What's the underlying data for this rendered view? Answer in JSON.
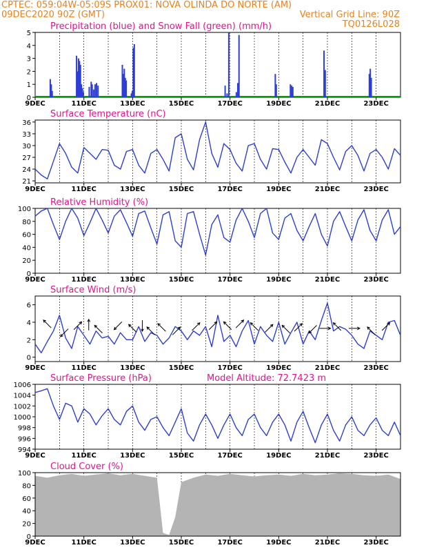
{
  "header": {
    "line1_left": "CPTEC:   059:04W-05:09S   PROX01: NOVA OLINDA DO NORTE (AM)",
    "line2_left": "09DEC2020 90Z (GMT)",
    "line2_right": "Vertical Grid Line: 90Z",
    "line3_right": "TQ0126L028"
  },
  "colors": {
    "title": "#e0148c",
    "header": "#e8821e",
    "line": "#2d3ed6",
    "snow": "#00a000",
    "cloud": "#b4b4b4"
  },
  "chart_data": [
    {
      "id": "precip",
      "type": "bar",
      "title": "Precipitation (blue) and Snow Fall (green) (mm/h)",
      "ylim": [
        0,
        5
      ],
      "yticks": [
        0,
        1,
        2,
        3,
        4,
        5
      ],
      "x_range_days": [
        0,
        15
      ],
      "x_tick_labels": [
        "9DEC",
        "11DEC",
        "13DEC",
        "15DEC",
        "17DEC",
        "19DEC",
        "21DEC",
        "23DEC"
      ],
      "snow_values": [
        0
      ],
      "rain_events": [
        [
          0.62,
          1.4
        ],
        [
          0.66,
          1.0
        ],
        [
          0.7,
          0.5
        ],
        [
          1.7,
          3.2
        ],
        [
          1.74,
          2.0
        ],
        [
          1.78,
          3.0
        ],
        [
          1.82,
          2.8
        ],
        [
          1.86,
          2.5
        ],
        [
          1.9,
          1.0
        ],
        [
          1.94,
          0.7
        ],
        [
          1.98,
          0.4
        ],
        [
          2.22,
          0.8
        ],
        [
          2.3,
          1.2
        ],
        [
          2.34,
          1.0
        ],
        [
          2.4,
          0.6
        ],
        [
          2.46,
          1.0
        ],
        [
          2.52,
          1.1
        ],
        [
          2.58,
          0.9
        ],
        [
          3.58,
          2.5
        ],
        [
          3.62,
          1.8
        ],
        [
          3.66,
          2.2
        ],
        [
          3.7,
          1.5
        ],
        [
          3.74,
          1.3
        ],
        [
          3.95,
          0.3
        ],
        [
          3.99,
          0.5
        ],
        [
          4.03,
          3.8
        ],
        [
          4.07,
          4.1
        ],
        [
          7.8,
          0.9
        ],
        [
          7.88,
          0.3
        ],
        [
          7.95,
          5.0
        ],
        [
          8.26,
          0.4
        ],
        [
          8.32,
          1.1
        ],
        [
          8.37,
          4.8
        ],
        [
          9.86,
          1.8
        ],
        [
          9.9,
          1.0
        ],
        [
          10.48,
          1.0
        ],
        [
          10.53,
          0.9
        ],
        [
          10.58,
          0.8
        ],
        [
          11.86,
          3.6
        ],
        [
          11.91,
          2.1
        ],
        [
          13.72,
          1.8
        ],
        [
          13.76,
          2.2
        ],
        [
          13.8,
          1.5
        ]
      ]
    },
    {
      "id": "temp",
      "type": "line",
      "title": "Surface Temperature (nC)",
      "ylim": [
        20.5,
        36.5
      ],
      "yticks": [
        21,
        24,
        27,
        30,
        33,
        36
      ],
      "x_tick_labels": [
        "9DEC",
        "11DEC",
        "13DEC",
        "15DEC",
        "17DEC",
        "19DEC",
        "21DEC",
        "23DEC"
      ],
      "x": [
        0,
        0.25,
        0.5,
        0.75,
        1,
        1.25,
        1.5,
        1.75,
        2,
        2.25,
        2.5,
        2.75,
        3,
        3.25,
        3.5,
        3.75,
        4,
        4.25,
        4.5,
        4.75,
        5,
        5.25,
        5.5,
        5.75,
        6,
        6.25,
        6.5,
        6.75,
        7,
        7.25,
        7.5,
        7.75,
        8,
        8.25,
        8.5,
        8.75,
        9,
        9.25,
        9.5,
        9.75,
        10,
        10.25,
        10.5,
        10.75,
        11,
        11.25,
        11.5,
        11.75,
        12,
        12.25,
        12.5,
        12.75,
        13,
        13.25,
        13.5,
        13.75,
        14,
        14.25,
        14.5,
        14.75,
        15
      ],
      "values": [
        24,
        22.5,
        21.5,
        26,
        30.5,
        28,
        24.5,
        23,
        29.5,
        28,
        26.5,
        29,
        28.8,
        25,
        24,
        28.5,
        29,
        25,
        23,
        28,
        29,
        26.5,
        23.5,
        32,
        33,
        26.5,
        23.8,
        31.5,
        36,
        28,
        24.5,
        30.5,
        29,
        25.5,
        23.5,
        30,
        30.5,
        26.5,
        24,
        29.2,
        29,
        25.8,
        23,
        27,
        29,
        27,
        25,
        31.5,
        30.5,
        27,
        23.8,
        28.5,
        30,
        27.5,
        23.5,
        28,
        29,
        27,
        24,
        29.2,
        27.5
      ]
    },
    {
      "id": "rh",
      "type": "line",
      "title": "Relative Humidity (%)",
      "ylim": [
        0,
        100
      ],
      "yticks": [
        0,
        20,
        40,
        60,
        80,
        100
      ],
      "x_tick_labels": [
        "9DEC",
        "11DEC",
        "13DEC",
        "15DEC",
        "17DEC",
        "19DEC",
        "21DEC",
        "23DEC"
      ],
      "x": [
        0,
        0.25,
        0.5,
        0.75,
        1,
        1.25,
        1.5,
        1.75,
        2,
        2.25,
        2.5,
        2.75,
        3,
        3.25,
        3.5,
        3.75,
        4,
        4.25,
        4.5,
        4.75,
        5,
        5.25,
        5.5,
        5.75,
        6,
        6.25,
        6.5,
        6.75,
        7,
        7.25,
        7.5,
        7.75,
        8,
        8.25,
        8.5,
        8.75,
        9,
        9.25,
        9.5,
        9.75,
        10,
        10.25,
        10.5,
        10.75,
        11,
        11.25,
        11.5,
        11.75,
        12,
        12.25,
        12.5,
        12.75,
        13,
        13.25,
        13.5,
        13.75,
        14,
        14.25,
        14.5,
        14.75,
        15
      ],
      "values": [
        88,
        96,
        100,
        75,
        52,
        80,
        100,
        85,
        58,
        78,
        100,
        82,
        62,
        88,
        98,
        78,
        57,
        92,
        96,
        70,
        45,
        90,
        95,
        50,
        40,
        92,
        95,
        60,
        28,
        75,
        90,
        55,
        48,
        82,
        100,
        80,
        55,
        92,
        100,
        62,
        52,
        85,
        92,
        66,
        50,
        72,
        92,
        60,
        42,
        80,
        95,
        72,
        50,
        82,
        98,
        66,
        50,
        82,
        98,
        60,
        72
      ]
    },
    {
      "id": "wind",
      "type": "line",
      "title": "Surface Wind (m/s)",
      "ylim": [
        -0.5,
        7
      ],
      "yticks": [
        0,
        2,
        4,
        6
      ],
      "x_tick_labels": [
        "9DEC",
        "11DEC",
        "13DEC",
        "15DEC",
        "17DEC",
        "19DEC",
        "21DEC",
        "23DEC"
      ],
      "x": [
        0,
        0.25,
        0.5,
        0.75,
        1,
        1.25,
        1.5,
        1.75,
        2,
        2.25,
        2.5,
        2.75,
        3,
        3.25,
        3.5,
        3.75,
        4,
        4.25,
        4.5,
        4.75,
        5,
        5.25,
        5.5,
        5.75,
        6,
        6.25,
        6.5,
        6.75,
        7,
        7.25,
        7.5,
        7.75,
        8,
        8.25,
        8.5,
        8.75,
        9,
        9.25,
        9.5,
        9.75,
        10,
        10.25,
        10.5,
        10.75,
        11,
        11.25,
        11.5,
        11.75,
        12,
        12.25,
        12.5,
        12.75,
        13,
        13.25,
        13.5,
        13.75,
        14,
        14.25,
        14.5,
        14.75,
        15
      ],
      "values": [
        1.5,
        0.5,
        1.8,
        3.0,
        4.8,
        2.2,
        1.0,
        3.5,
        2.5,
        1.5,
        3.0,
        2.2,
        2.4,
        1.5,
        2.8,
        2.0,
        2.0,
        3.5,
        1.8,
        2.8,
        2.5,
        1.5,
        2.2,
        3.5,
        3.0,
        2.0,
        3.0,
        2.5,
        3.5,
        1.2,
        4.8,
        1.8,
        2.5,
        1.2,
        3.0,
        4.2,
        1.5,
        3.5,
        2.5,
        1.8,
        4.0,
        1.5,
        2.8,
        4.0,
        1.5,
        3.0,
        2.0,
        4.2,
        6.2,
        3.0,
        3.5,
        3.2,
        2.5,
        1.5,
        1.0,
        3.0,
        2.5,
        2.0,
        4.0,
        4.2,
        2.5
      ],
      "wind_arrows": [
        [
          0.5,
          3.8,
          315
        ],
        [
          1.2,
          2.8,
          225
        ],
        [
          1.75,
          3.6,
          45
        ],
        [
          2.2,
          3.7,
          0
        ],
        [
          2.6,
          3.2,
          315
        ],
        [
          3.4,
          3.6,
          225
        ],
        [
          4.0,
          3.3,
          315
        ],
        [
          4.4,
          3.6,
          180
        ],
        [
          4.75,
          3.0,
          315
        ],
        [
          5.2,
          3.4,
          315
        ],
        [
          5.8,
          3.0,
          45
        ],
        [
          6.6,
          3.5,
          45
        ],
        [
          7.3,
          3.6,
          45
        ],
        [
          7.9,
          3.6,
          315
        ],
        [
          8.4,
          3.8,
          45
        ],
        [
          9.0,
          3.5,
          315
        ],
        [
          9.6,
          3.3,
          45
        ],
        [
          10.3,
          3.2,
          315
        ],
        [
          10.8,
          3.4,
          45
        ],
        [
          11.4,
          3.2,
          225
        ],
        [
          11.9,
          3.3,
          90
        ],
        [
          12.4,
          3.5,
          315
        ],
        [
          13.1,
          3.3,
          90
        ],
        [
          13.8,
          3.0,
          315
        ],
        [
          14.4,
          3.5,
          45
        ]
      ]
    },
    {
      "id": "pressure",
      "type": "line",
      "title": "Surface Pressure (hPa)",
      "annotation": "Model Altitude: 72.7423 m",
      "ylim": [
        994,
        1006
      ],
      "yticks": [
        994,
        996,
        998,
        1000,
        1002,
        1004,
        1006
      ],
      "x_tick_labels": [
        "9DEC",
        "11DEC",
        "13DEC",
        "15DEC",
        "17DEC",
        "19DEC",
        "21DEC",
        "23DEC"
      ],
      "x": [
        0,
        0.25,
        0.5,
        0.75,
        1,
        1.25,
        1.5,
        1.75,
        2,
        2.25,
        2.5,
        2.75,
        3,
        3.25,
        3.5,
        3.75,
        4,
        4.25,
        4.5,
        4.75,
        5,
        5.25,
        5.5,
        5.75,
        6,
        6.25,
        6.5,
        6.75,
        7,
        7.25,
        7.5,
        7.75,
        8,
        8.25,
        8.5,
        8.75,
        9,
        9.25,
        9.5,
        9.75,
        10,
        10.25,
        10.5,
        10.75,
        11,
        11.25,
        11.5,
        11.75,
        12,
        12.25,
        12.5,
        12.75,
        13,
        13.25,
        13.5,
        13.75,
        14,
        14.25,
        14.5,
        14.75,
        15
      ],
      "values": [
        1004.5,
        1004.8,
        1005.2,
        1002,
        999.5,
        1002.5,
        1002,
        999,
        1001.5,
        1000.5,
        998.5,
        1000.2,
        1001.5,
        999.5,
        998.5,
        1001,
        1002,
        999,
        997.5,
        999.5,
        1000,
        998,
        996.5,
        999,
        1001.5,
        997,
        995.5,
        998.5,
        1000.5,
        998.5,
        996,
        998.5,
        1000.5,
        998,
        996.5,
        999.5,
        1000.5,
        998,
        996.5,
        999,
        1000.5,
        998.5,
        995.5,
        999,
        1001,
        998,
        995.2,
        998.5,
        1000.5,
        997.5,
        995.5,
        998.5,
        1000,
        997.5,
        996.5,
        998.5,
        999.8,
        997.5,
        996.5,
        999,
        996.5
      ]
    },
    {
      "id": "cloud",
      "type": "area",
      "title": "Cloud Cover (%)",
      "ylim": [
        0,
        100
      ],
      "yticks": [
        0,
        20,
        40,
        60,
        80,
        100
      ],
      "x_tick_labels": [
        "9DEC",
        "11DEC",
        "13DEC",
        "15DEC",
        "17DEC",
        "19DEC",
        "21DEC",
        "23DEC"
      ],
      "x": [
        0,
        0.5,
        1,
        1.5,
        2,
        2.5,
        3,
        3.5,
        4,
        4.5,
        5,
        5.25,
        5.5,
        5.75,
        6,
        6.5,
        7,
        7.5,
        8,
        8.5,
        9,
        9.5,
        10,
        10.5,
        11,
        11.5,
        12,
        12.5,
        13,
        13.5,
        14,
        14.5,
        15
      ],
      "values": [
        95,
        92,
        96,
        98,
        95,
        97,
        99,
        96,
        98,
        95,
        92,
        5,
        2,
        30,
        85,
        92,
        97,
        95,
        98,
        96,
        94,
        96,
        97,
        95,
        98,
        96,
        97,
        99,
        98,
        96,
        95,
        97,
        90
      ]
    }
  ]
}
